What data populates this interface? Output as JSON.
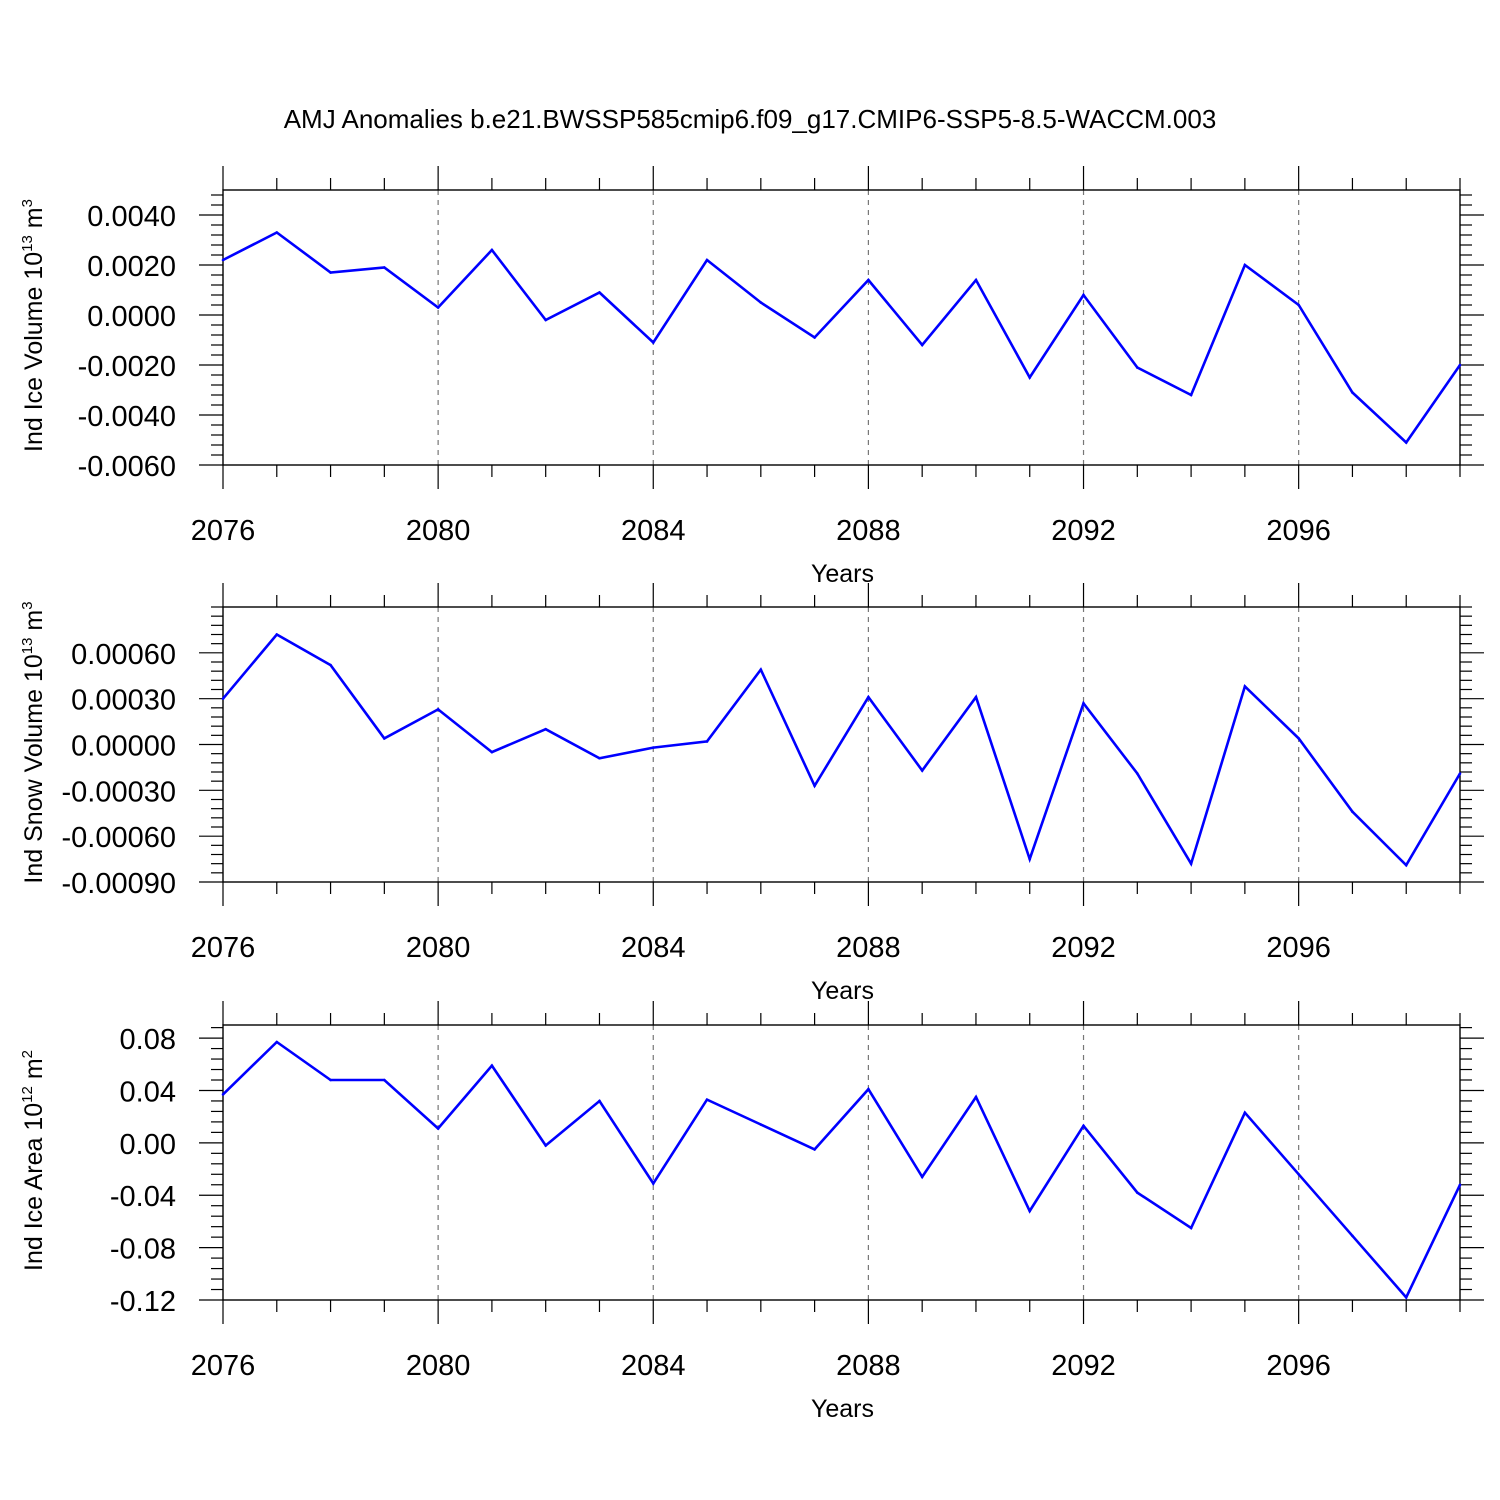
{
  "title": "AMJ Anomalies b.e21.BWSSP585cmip6.f09_g17.CMIP6-SSP5-8.5-WACCM.003",
  "line_color": "#0000ff",
  "chart_data": [
    {
      "type": "line",
      "ylabel_main": "Ind Ice Volume 10",
      "ylabel_exp": "13",
      "ylabel_unit": " m",
      "ylabel_unit_exp": "3",
      "xlabel": "Years",
      "xlim": [
        2076,
        2099
      ],
      "ylim": [
        -0.006,
        0.005
      ],
      "x_ticks": [
        "2076",
        "2080",
        "2084",
        "2088",
        "2092",
        "2096"
      ],
      "y_ticks": [
        "0.0040",
        "0.0020",
        "0.0000",
        "-0.0020",
        "-0.0040",
        "-0.0060"
      ],
      "grid": "vertical dashed at labeled years",
      "x": [
        2076,
        2077,
        2078,
        2079,
        2080,
        2081,
        2082,
        2083,
        2084,
        2085,
        2086,
        2087,
        2088,
        2089,
        2090,
        2091,
        2092,
        2093,
        2094,
        2095,
        2096,
        2097,
        2098,
        2099
      ],
      "values": [
        0.0022,
        0.0033,
        0.0017,
        0.0019,
        0.0003,
        0.0026,
        -0.0002,
        0.0009,
        -0.0011,
        0.0022,
        0.0005,
        -0.0009,
        0.0014,
        -0.0012,
        0.0014,
        -0.0025,
        0.0008,
        -0.0021,
        -0.0032,
        0.002,
        0.0004,
        -0.0031,
        -0.0051,
        -0.002
      ]
    },
    {
      "type": "line",
      "ylabel_main": "Ind Snow Volume 10",
      "ylabel_exp": "13",
      "ylabel_unit": " m",
      "ylabel_unit_exp": "3",
      "xlabel": "Years",
      "xlim": [
        2076,
        2099
      ],
      "ylim": [
        -0.0009,
        0.0009
      ],
      "x_ticks": [
        "2076",
        "2080",
        "2084",
        "2088",
        "2092",
        "2096"
      ],
      "y_ticks": [
        "0.00060",
        "0.00030",
        "0.00000",
        "-0.00030",
        "-0.00060",
        "-0.00090"
      ],
      "grid": "vertical dashed at labeled years",
      "x": [
        2076,
        2077,
        2078,
        2079,
        2080,
        2081,
        2082,
        2083,
        2084,
        2085,
        2086,
        2087,
        2088,
        2089,
        2090,
        2091,
        2092,
        2093,
        2094,
        2095,
        2096,
        2097,
        2098,
        2099
      ],
      "values": [
        0.0003,
        0.00072,
        0.00052,
        4e-05,
        0.00023,
        -5e-05,
        0.0001,
        -9e-05,
        -2e-05,
        2e-05,
        0.00049,
        -0.00027,
        0.00031,
        -0.00017,
        0.00031,
        -0.00075,
        0.00027,
        -0.00019,
        -0.00078,
        0.00038,
        4e-05,
        -0.00044,
        -0.00079,
        -0.00019
      ]
    },
    {
      "type": "line",
      "ylabel_main": "Ind Ice Area 10",
      "ylabel_exp": "12",
      "ylabel_unit": " m",
      "ylabel_unit_exp": "2",
      "xlabel": "Years",
      "xlim": [
        2076,
        2099
      ],
      "ylim": [
        -0.12,
        0.09
      ],
      "x_ticks": [
        "2076",
        "2080",
        "2084",
        "2088",
        "2092",
        "2096"
      ],
      "y_ticks": [
        "0.08",
        "0.04",
        "0.00",
        "-0.04",
        "-0.08",
        "-0.12"
      ],
      "grid": "vertical dashed at labeled years",
      "x": [
        2076,
        2077,
        2078,
        2079,
        2080,
        2081,
        2082,
        2083,
        2084,
        2085,
        2086,
        2087,
        2088,
        2089,
        2090,
        2091,
        2092,
        2093,
        2094,
        2095,
        2096,
        2097,
        2098,
        2099
      ],
      "values": [
        0.037,
        0.077,
        0.048,
        0.048,
        0.011,
        0.059,
        -0.002,
        0.032,
        -0.031,
        0.033,
        0.014,
        -0.005,
        0.041,
        -0.026,
        0.035,
        -0.052,
        0.013,
        -0.038,
        -0.065,
        0.023,
        -0.024,
        -0.071,
        -0.118,
        -0.032
      ]
    }
  ]
}
